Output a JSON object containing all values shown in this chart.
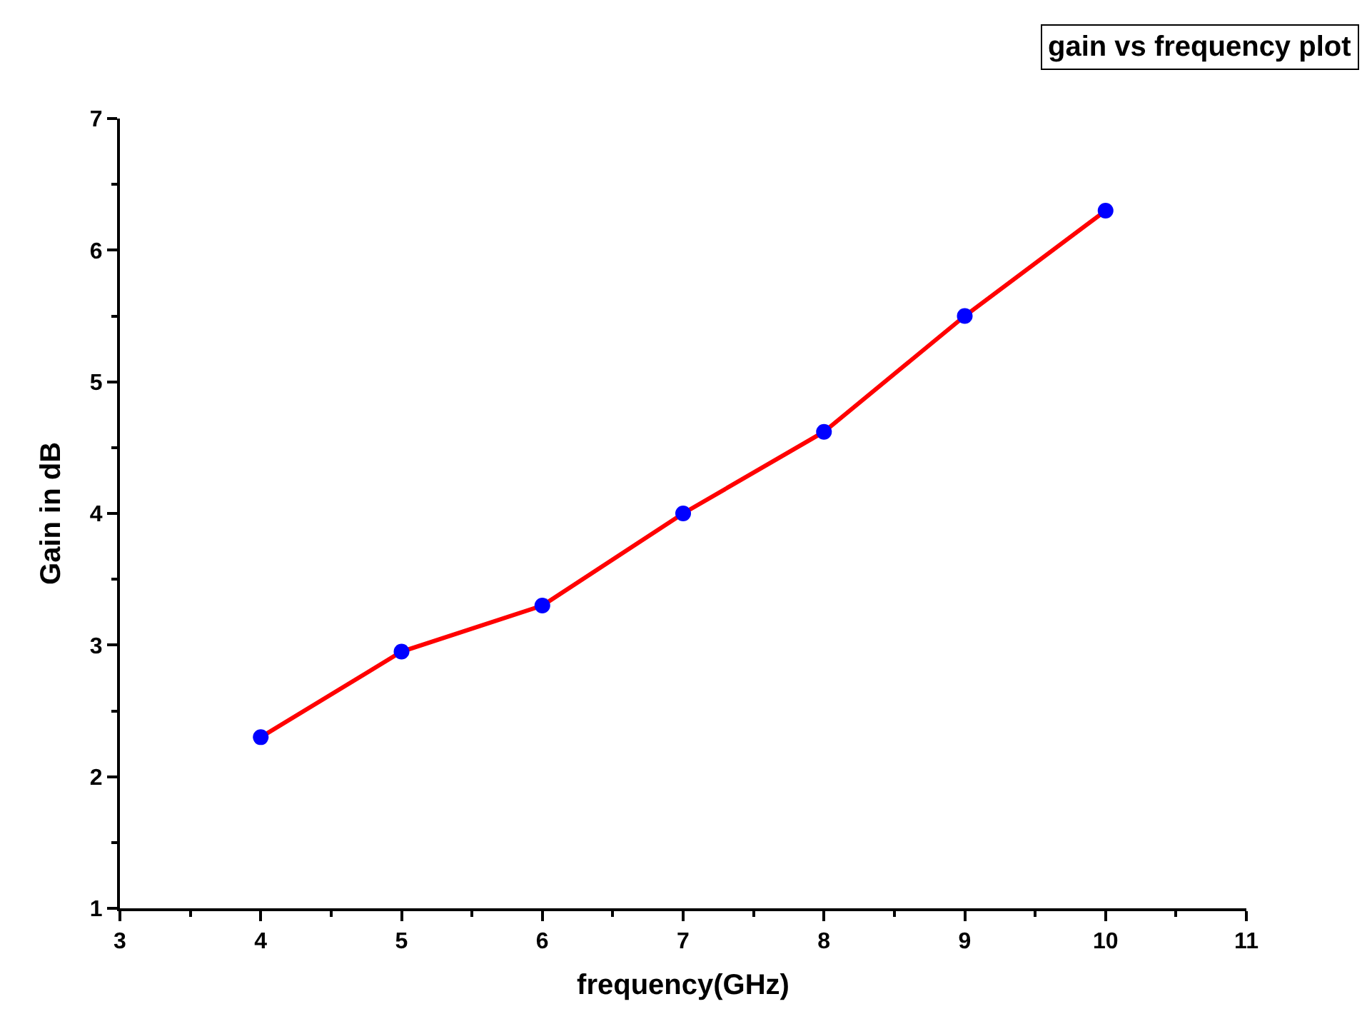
{
  "chart_data": {
    "type": "line",
    "title": "gain vs frequency plot",
    "xlabel": "frequency(GHz)",
    "ylabel": "Gain in dB",
    "x": [
      4,
      5,
      6,
      7,
      8,
      9,
      10
    ],
    "series": [
      {
        "color": "#ff0000",
        "marker": "none",
        "values": [
          2.3,
          2.95,
          3.3,
          4.0,
          4.62,
          5.5,
          6.3
        ]
      },
      {
        "type": "scatter",
        "color": "#0000ff",
        "values": [
          2.3,
          2.95,
          3.3,
          4.0,
          4.62,
          5.5,
          6.3
        ]
      }
    ],
    "marker": "circle",
    "line_style": "solid",
    "xlim": [
      3,
      11
    ],
    "xticks": [
      3,
      4,
      5,
      6,
      7,
      8,
      9,
      10,
      11
    ],
    "ylim": [
      1,
      7
    ],
    "yticks": [
      1,
      2,
      3,
      4,
      5,
      6,
      7
    ]
  }
}
